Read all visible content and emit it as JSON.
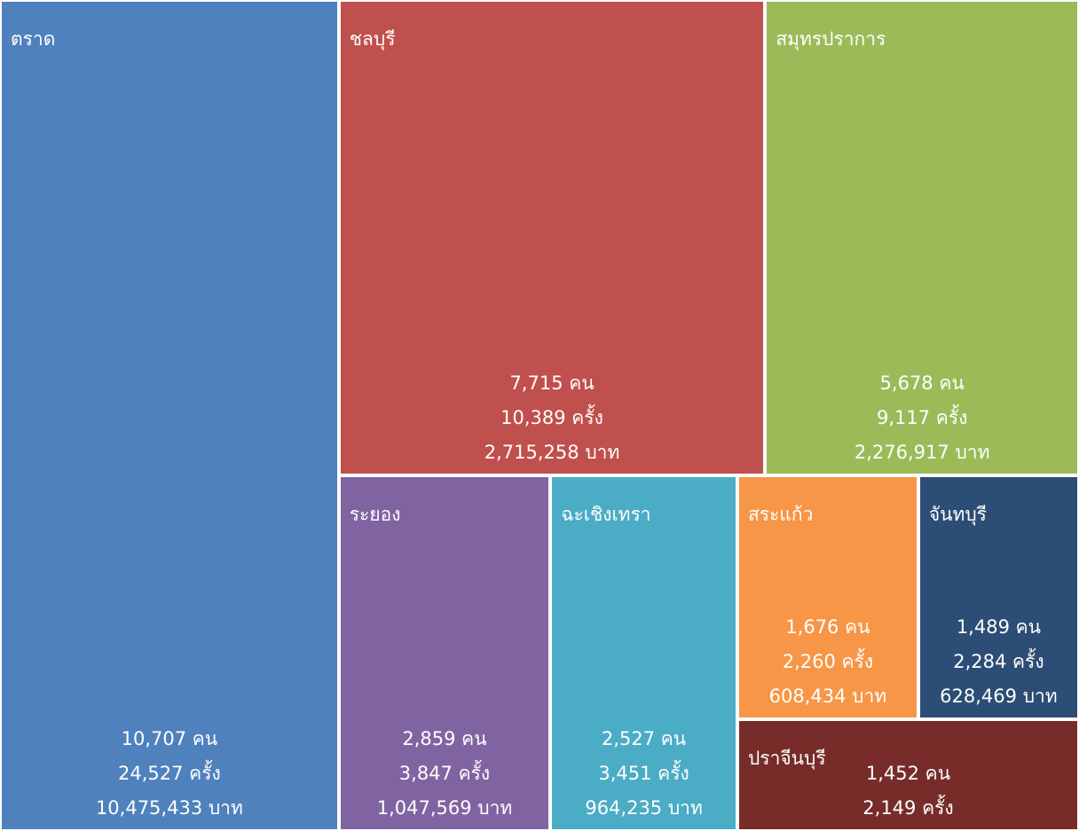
{
  "chart_data": {
    "type": "treemap",
    "categories": [
      "ตราด",
      "ชลบุรี",
      "สมุทรปราการ",
      "ระยอง",
      "ฉะเชิงเทรา",
      "สระแก้ว",
      "จันทบุรี",
      "ปราจีนบุรี"
    ],
    "colors": [
      "#4f81bd",
      "#c0504d",
      "#9bbb59",
      "#8064a2",
      "#4bacc6",
      "#f79646",
      "#2c4d75",
      "#772c2a"
    ],
    "series": [
      {
        "values": [
          10707,
          7715,
          5678,
          2859,
          2527,
          1676,
          1489,
          1452
        ],
        "value_labels": [
          "10,707 คน",
          "7,715 คน",
          "5,678 คน",
          "2,859 คน",
          "2,527 คน",
          "1,676 คน",
          "1,489 คน",
          "1,452 คน"
        ]
      },
      {
        "values": [
          24527,
          10389,
          9117,
          3847,
          3451,
          2260,
          2284,
          2149
        ],
        "value_labels": [
          "24,527 ครั้ง",
          "10,389 ครั้ง",
          "9,117 ครั้ง",
          "3,847 ครั้ง",
          "3,451 ครั้ง",
          "2,260 ครั้ง",
          "2,284 ครั้ง",
          "2,149 ครั้ง"
        ]
      },
      {
        "values": [
          10475433,
          2715258,
          2276917,
          1047569,
          964235,
          608434,
          628469,
          null
        ],
        "value_labels": [
          "10,475,433 บาท",
          "2,715,258 บาท",
          "2,276,917 บาท",
          "1,047,569 บาท",
          "964,235 บาท",
          "608,434 บาท",
          "628,469 บาท",
          null
        ]
      }
    ]
  }
}
